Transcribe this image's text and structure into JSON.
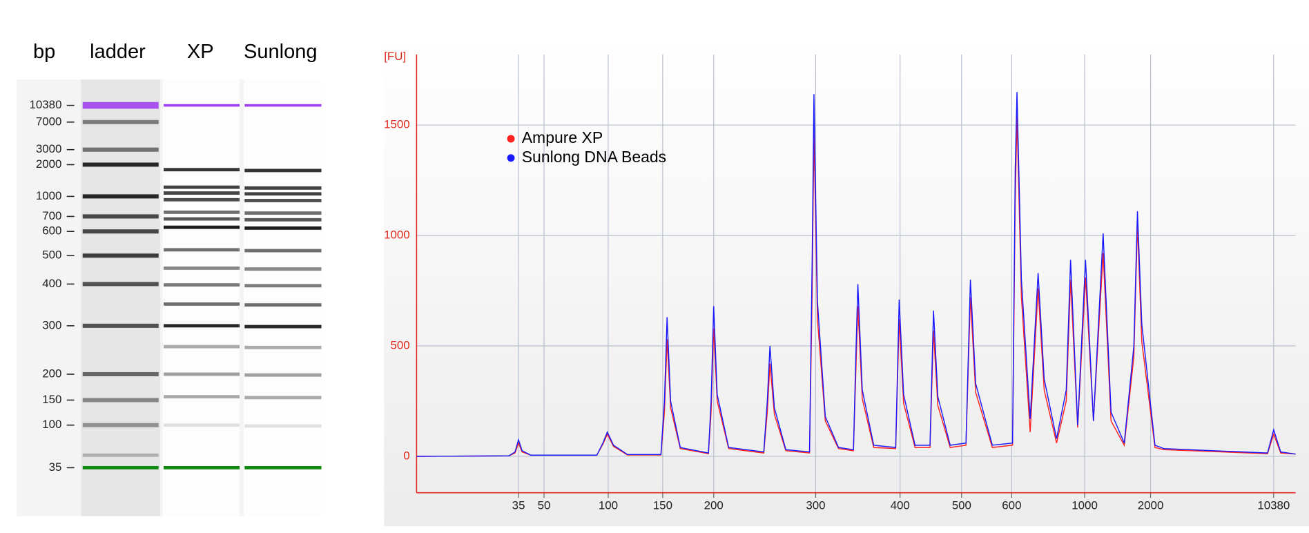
{
  "chart_data": [
    {
      "type": "gel",
      "ylabel": "bp",
      "lanes": [
        "ladder",
        "XP",
        "Sunlong"
      ],
      "yticks": [
        10380,
        7000,
        3000,
        2000,
        1000,
        700,
        600,
        500,
        400,
        300,
        200,
        150,
        100,
        35
      ]
    },
    {
      "type": "line",
      "ylabel": "[FU]",
      "legend": "upper left",
      "grid": true,
      "xlim": [
        0,
        100
      ],
      "ylim": [
        -165,
        1820
      ],
      "yticks": [
        0,
        500,
        1000,
        1500
      ],
      "xticks": [
        {
          "value": 11.6,
          "label": "35"
        },
        {
          "value": 14.5,
          "label": "50"
        },
        {
          "value": 21.8,
          "label": "100"
        },
        {
          "value": 28.0,
          "label": "150"
        },
        {
          "value": 33.8,
          "label": "200"
        },
        {
          "value": 45.4,
          "label": "300"
        },
        {
          "value": 55.0,
          "label": "400"
        },
        {
          "value": 62.0,
          "label": "500"
        },
        {
          "value": 67.7,
          "label": "600"
        },
        {
          "value": 76.0,
          "label": "1000"
        },
        {
          "value": 83.5,
          "label": "2000"
        },
        {
          "value": 97.5,
          "label": "10380"
        }
      ],
      "x": [
        0,
        10.5,
        11.2,
        11.6,
        12.0,
        13.0,
        20.5,
        21.2,
        21.7,
        22.4,
        24.0,
        27.8,
        28.2,
        28.5,
        28.9,
        30.0,
        33.2,
        33.5,
        33.8,
        34.2,
        35.5,
        39.5,
        39.9,
        40.2,
        40.7,
        42.0,
        44.7,
        45.0,
        45.2,
        45.6,
        46.5,
        48.0,
        49.7,
        50.0,
        50.2,
        50.7,
        52.0,
        54.5,
        54.9,
        55.4,
        56.7,
        58.4,
        58.8,
        59.3,
        60.7,
        62.5,
        63.0,
        63.6,
        65.5,
        67.8,
        68.1,
        68.3,
        68.8,
        69.8,
        70.7,
        71.4,
        72.8,
        73.9,
        74.4,
        75.2,
        76.1,
        77.0,
        78.1,
        79.0,
        80.5,
        81.6,
        82.0,
        82.5,
        84.0,
        85.0,
        96.8,
        97.5,
        98.3,
        100
      ],
      "series": [
        {
          "name": "Ampure XP",
          "color": "#ff2020",
          "values": [
            0,
            2,
            15,
            60,
            20,
            5,
            5,
            55,
            100,
            45,
            6,
            6,
            200,
            530,
            220,
            35,
            12,
            200,
            580,
            250,
            35,
            15,
            200,
            420,
            190,
            25,
            15,
            750,
            1480,
            620,
            160,
            35,
            25,
            420,
            680,
            260,
            40,
            35,
            620,
            240,
            40,
            40,
            570,
            230,
            40,
            50,
            720,
            290,
            40,
            50,
            1150,
            1540,
            720,
            110,
            760,
            300,
            60,
            250,
            800,
            130,
            810,
            160,
            920,
            160,
            50,
            450,
            1050,
            520,
            40,
            30,
            12,
            100,
            15,
            10
          ]
        },
        {
          "name": "Sunlong DNA Beads",
          "color": "#1a1aff",
          "values": [
            0,
            2,
            20,
            75,
            25,
            5,
            5,
            60,
            110,
            50,
            8,
            8,
            250,
            630,
            250,
            40,
            15,
            250,
            680,
            280,
            40,
            20,
            250,
            500,
            220,
            30,
            20,
            900,
            1640,
            700,
            180,
            40,
            30,
            500,
            780,
            300,
            50,
            40,
            710,
            280,
            50,
            50,
            660,
            270,
            50,
            60,
            800,
            330,
            50,
            60,
            1300,
            1650,
            800,
            170,
            830,
            350,
            80,
            300,
            890,
            140,
            890,
            160,
            1010,
            200,
            60,
            500,
            1110,
            600,
            50,
            35,
            15,
            120,
            20,
            10
          ]
        }
      ]
    }
  ]
}
